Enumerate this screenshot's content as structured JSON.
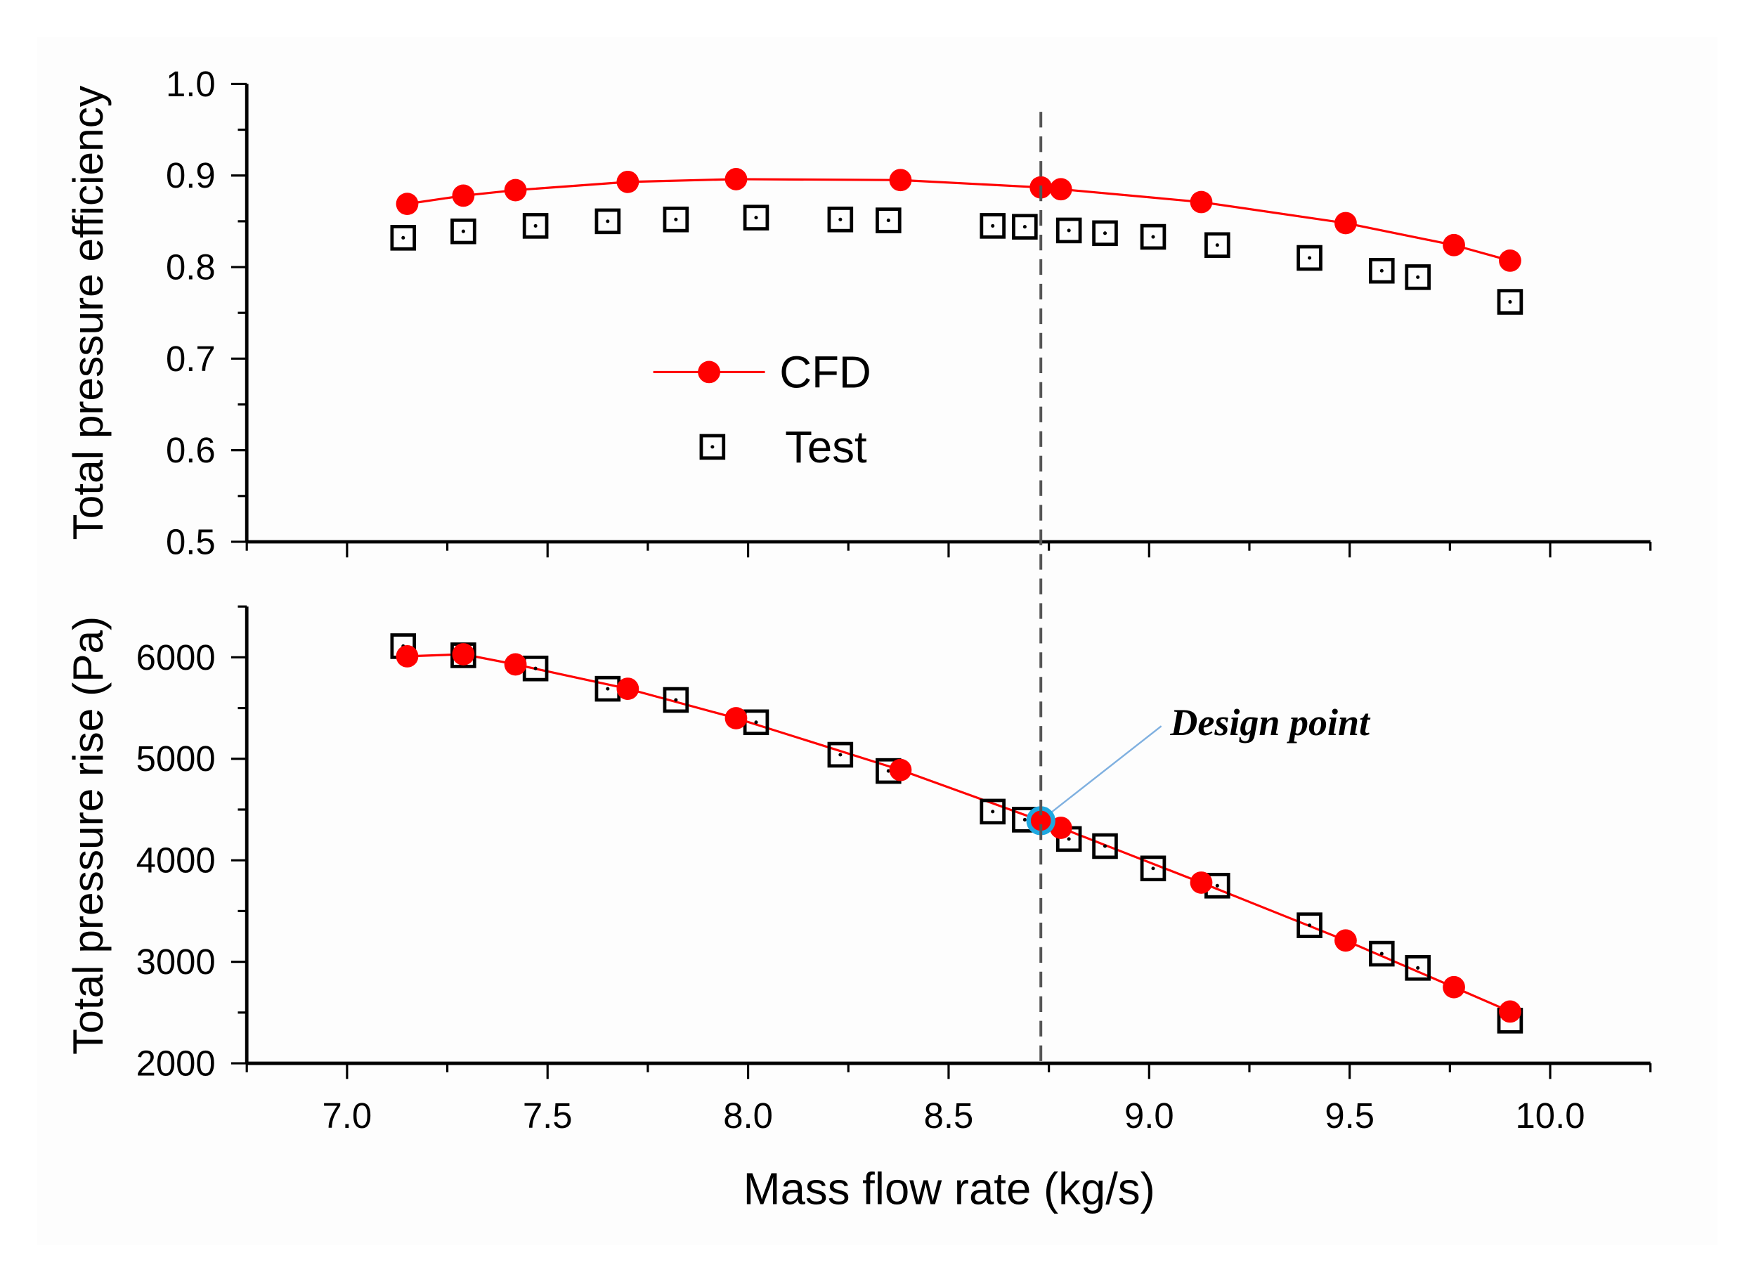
{
  "chart_data": [
    {
      "type": "line",
      "panel": "top",
      "ylabel": "Total pressure efficiency",
      "ylim": [
        0.5,
        1.0
      ],
      "yticks": [
        "0.5",
        "0.6",
        "0.7",
        "0.8",
        "0.9",
        "1.0"
      ],
      "xlim": [
        6.75,
        10.25
      ],
      "legend": {
        "placement": "center-left",
        "entries": [
          "CFD",
          "Test"
        ]
      },
      "series": [
        {
          "name": "CFD",
          "style": "red-line-circle",
          "x": [
            7.15,
            7.29,
            7.42,
            7.7,
            7.97,
            8.38,
            8.73,
            8.78,
            9.13,
            9.49,
            9.76,
            9.9
          ],
          "y": [
            0.869,
            0.878,
            0.884,
            0.893,
            0.896,
            0.895,
            0.887,
            0.885,
            0.871,
            0.848,
            0.824,
            0.807
          ]
        },
        {
          "name": "Test",
          "style": "open-square",
          "x": [
            7.14,
            7.29,
            7.47,
            7.65,
            7.82,
            8.02,
            8.23,
            8.35,
            8.61,
            8.69,
            8.8,
            8.89,
            9.01,
            9.17,
            9.4,
            9.58,
            9.67,
            9.9
          ],
          "y": [
            0.832,
            0.839,
            0.845,
            0.85,
            0.852,
            0.854,
            0.852,
            0.851,
            0.845,
            0.844,
            0.84,
            0.837,
            0.833,
            0.824,
            0.81,
            0.796,
            0.789,
            0.762
          ]
        }
      ]
    },
    {
      "type": "line",
      "panel": "bottom",
      "xlabel": "Mass flow rate (kg/s)",
      "ylabel": "Total pressure rise (Pa)",
      "ylim": [
        2000,
        6500
      ],
      "yticks": [
        "2000",
        "3000",
        "4000",
        "5000",
        "6000"
      ],
      "xlim": [
        6.75,
        10.25
      ],
      "xticks": [
        "7.0",
        "7.5",
        "8.0",
        "8.5",
        "9.0",
        "9.5",
        "10.0"
      ],
      "annotation": {
        "text": "Design point",
        "x": 8.73,
        "y": 4390
      },
      "series": [
        {
          "name": "CFD",
          "style": "red-line-circle",
          "x": [
            7.15,
            7.29,
            7.42,
            7.7,
            7.97,
            8.38,
            8.73,
            8.78,
            9.13,
            9.49,
            9.76,
            9.9
          ],
          "y": [
            6010,
            6030,
            5930,
            5690,
            5400,
            4890,
            4390,
            4320,
            3780,
            3210,
            2750,
            2510
          ]
        },
        {
          "name": "Test",
          "style": "open-square",
          "x": [
            7.14,
            7.29,
            7.47,
            7.65,
            7.82,
            8.02,
            8.23,
            8.35,
            8.61,
            8.69,
            8.8,
            8.89,
            9.01,
            9.17,
            9.4,
            9.58,
            9.67,
            9.9
          ],
          "y": [
            6110,
            6020,
            5890,
            5690,
            5580,
            5360,
            5040,
            4880,
            4480,
            4400,
            4210,
            4140,
            3920,
            3750,
            3360,
            3080,
            2940,
            2420
          ]
        }
      ]
    }
  ],
  "design_point_x": 8.73,
  "colors": {
    "cfd": "#ff0000",
    "test": "#000000",
    "design_marker": "#1ea8e0",
    "vline": "#555555"
  }
}
